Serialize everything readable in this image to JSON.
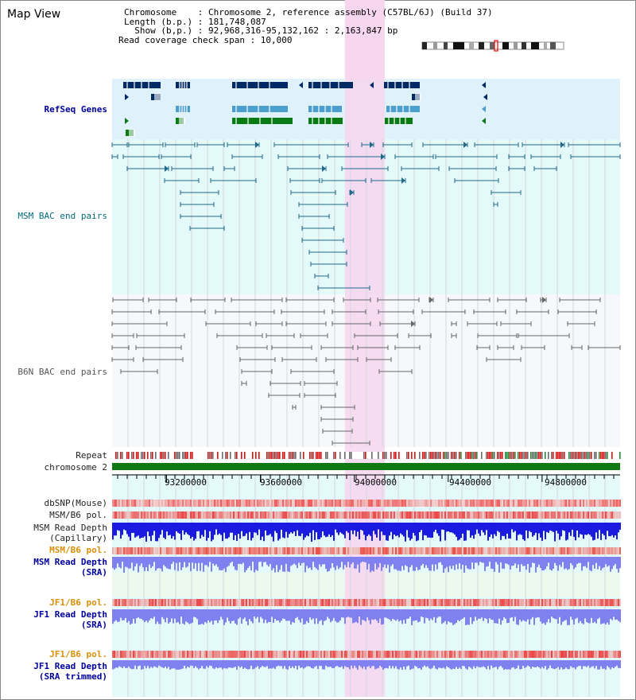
{
  "page": {
    "title": "Map View"
  },
  "info": {
    "chromosome_line": "Chromosome    : Chromosome 2, reference assembly (C57BL/6J) (Build 37)",
    "length_line": "Length (b.p.) : 181,748,087",
    "show_line": "  Show (b,p.) : 92,968,316-95,132,162 : 2,163,847 bp",
    "coverage_line": "Read coverage check span : 10,000"
  },
  "tracks": {
    "refseq": "RefSeq Genes",
    "msm_bac": "MSM BAC end pairs",
    "b6n_bac": "B6N BAC end pairs",
    "repeat": "Repeat",
    "chromosome": "chromosome 2",
    "dbsnp": "dbSNP(Mouse)",
    "msm_b6_pol_1": "MSM/B6 pol.",
    "msm_read_depth_cap_1": "MSM Read Depth",
    "msm_read_depth_cap_2": "(Capillary)",
    "msm_b6_pol_2": "MSM/B6 pol.",
    "msm_read_depth_sra_1": "MSM Read Depth",
    "msm_read_depth_sra_2": "(SRA)",
    "jf1_b6_pol_1": "JF1/B6 pol.",
    "jf1_read_depth_sra_1": "JF1 Read Depth",
    "jf1_read_depth_sra_2": "(SRA)",
    "jf1_b6_pol_2": "JF1/B6 pol.",
    "jf1_read_depth_trim_1": "JF1 Read Depth",
    "jf1_read_depth_trim_2": "(SRA trimmed)"
  },
  "axis": {
    "start": 92968316,
    "end": 95132162,
    "ticks": [
      "93200000",
      "93600000",
      "94000000",
      "94400000",
      "94800000"
    ],
    "tick_values": [
      93200000,
      93600000,
      94000000,
      94400000,
      94800000
    ]
  },
  "highlight": {
    "start": 93960000,
    "end": 94130000
  },
  "colors": {
    "refseq_bg": "#dff1fb",
    "bac_bg": "#e4f9fa",
    "b6n_bg": "#f7f8fb",
    "highlight": "#f7d6ef",
    "refseq_dark": "#002a66",
    "refseq_light": "#4a9fcc",
    "refseq_green": "#0a7a14",
    "msm_line": "#1f6a8a",
    "b6n_line": "#666666",
    "chromosome_bar": "#0f7a14",
    "depth_blue": "#1a1ae0",
    "depth_lavender": "#8080f0",
    "pol_red": "#f06060"
  }
}
